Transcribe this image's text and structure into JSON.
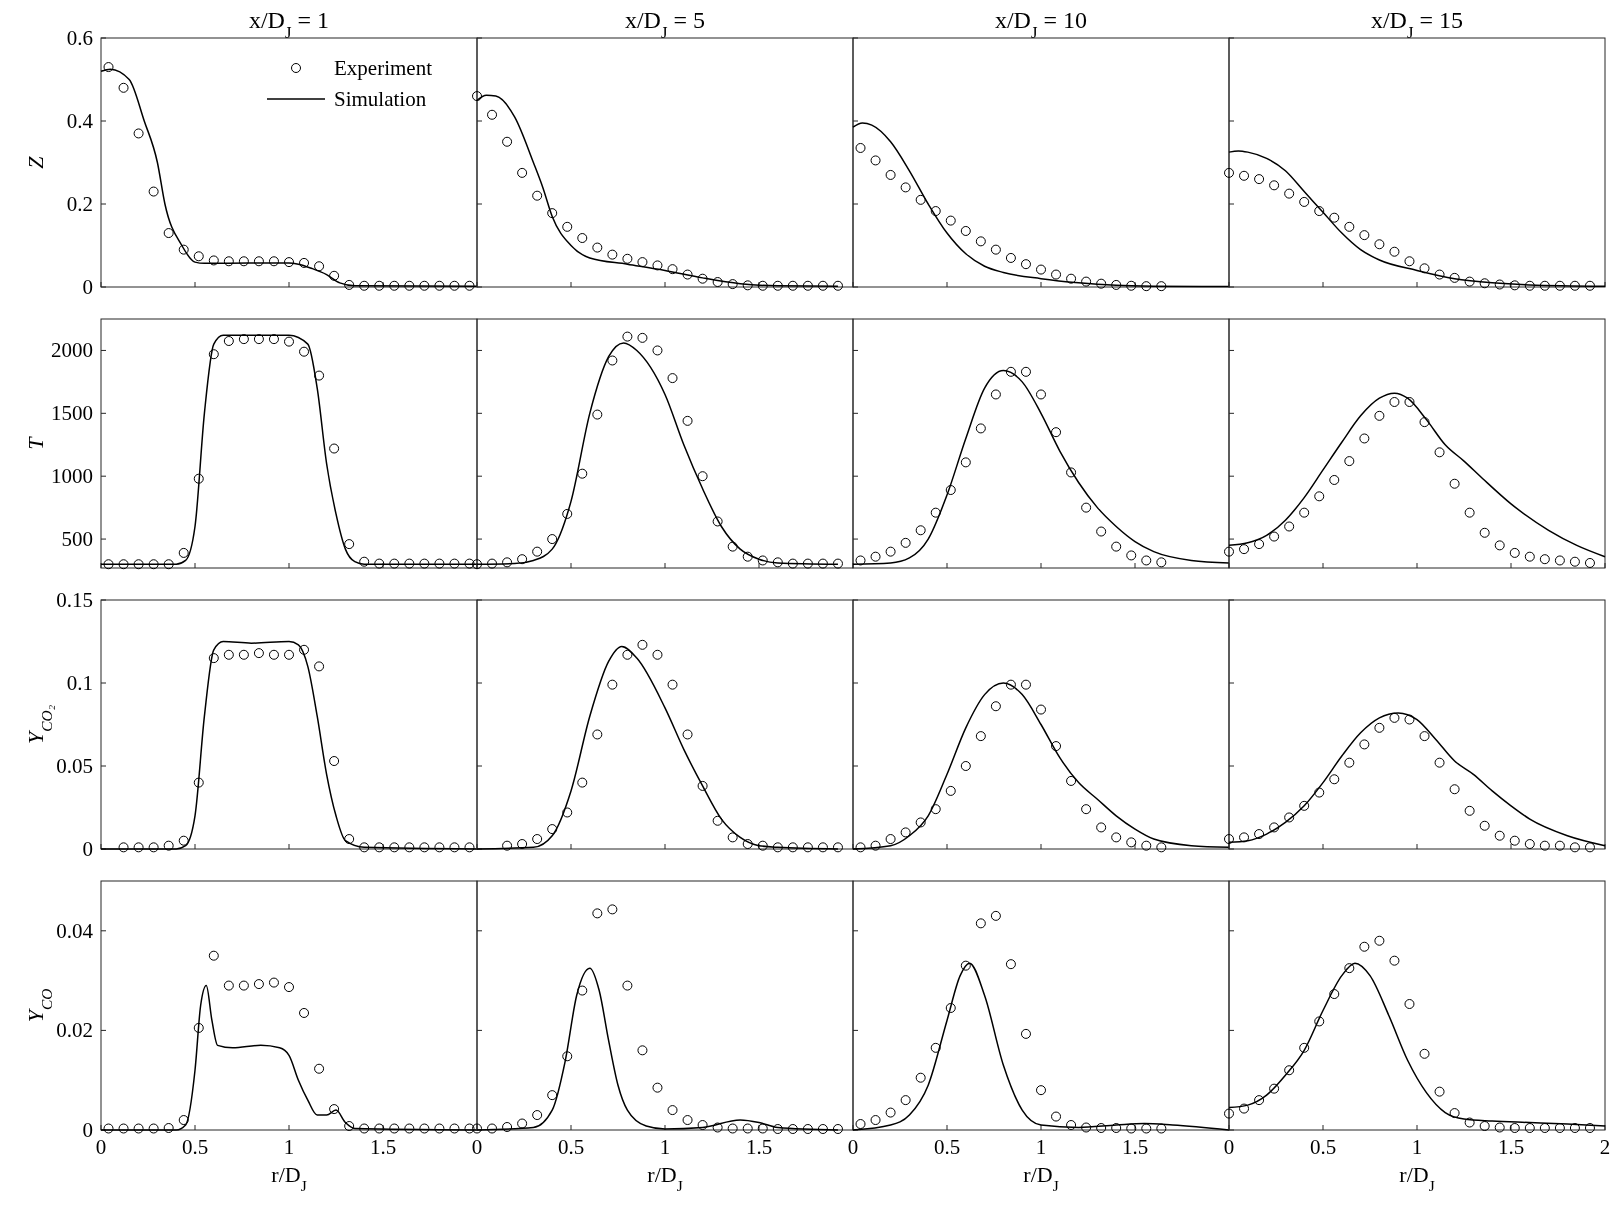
{
  "chart_data": [
    {
      "type": "scatter",
      "title": "x/D$_{J}$ = 1",
      "ylabel": "Z",
      "xlim": [
        0,
        2
      ],
      "xticks": [
        0,
        0.5,
        1,
        1.5
      ],
      "ylim": [
        0,
        0.6
      ],
      "yticks": [
        0,
        0.2,
        0.4,
        0.6
      ],
      "tick_labels": "y",
      "legend": "top right",
      "series": [
        {
          "name": "Experiment",
          "type": "scatter",
          "marker": "circle",
          "color": "#000000",
          "x": [
            0.04,
            0.12,
            0.2,
            0.28,
            0.36,
            0.44,
            0.52,
            0.6,
            0.68,
            0.76,
            0.84,
            0.92,
            1,
            1.08,
            1.16,
            1.24,
            1.32,
            1.4,
            1.48,
            1.56,
            1.64,
            1.72,
            1.8,
            1.88,
            1.96
          ],
          "values": [
            0.53,
            0.48,
            0.37,
            0.23,
            0.13,
            0.09,
            0.074,
            0.064,
            0.062,
            0.062,
            0.062,
            0.062,
            0.06,
            0.058,
            0.05,
            0.027,
            0.005,
            0.003,
            0.003,
            0.003,
            0.003,
            0.003,
            0.003,
            0.003,
            0.003
          ]
        },
        {
          "name": "Simulation",
          "type": "line",
          "color": "#000000",
          "x": [
            0,
            0.05,
            0.15,
            0.23,
            0.3,
            0.34,
            0.43,
            0.5,
            0.55,
            0.8,
            1,
            1.05,
            1.12,
            1.2,
            1.27,
            1.35,
            2
          ],
          "values": [
            0.52,
            0.525,
            0.5,
            0.4,
            0.3,
            0.2,
            0.1,
            0.06,
            0.057,
            0.058,
            0.058,
            0.055,
            0.045,
            0.03,
            0.01,
            0.003,
            0.002
          ]
        }
      ]
    },
    {
      "type": "scatter",
      "title": "x/D$_{J}$ = 5",
      "xlim": [
        0,
        2
      ],
      "xticks": [
        0,
        0.5,
        1,
        1.5
      ],
      "ylim": [
        0,
        0.6
      ],
      "yticks": [
        0,
        0.2,
        0.4,
        0.6
      ],
      "tick_labels": false,
      "series": [
        {
          "type": "scatter",
          "marker": "circle",
          "color": "#000000",
          "x": [
            0,
            0.08,
            0.16,
            0.24,
            0.32,
            0.4,
            0.48,
            0.56,
            0.64,
            0.72,
            0.8,
            0.88,
            0.96,
            1.04,
            1.12,
            1.2,
            1.28,
            1.36,
            1.44,
            1.52,
            1.6,
            1.68,
            1.76,
            1.84,
            1.92
          ],
          "values": [
            0.46,
            0.415,
            0.35,
            0.275,
            0.22,
            0.178,
            0.145,
            0.118,
            0.095,
            0.078,
            0.068,
            0.06,
            0.052,
            0.043,
            0.03,
            0.02,
            0.012,
            0.007,
            0.004,
            0.003,
            0.003,
            0.003,
            0.003,
            0.003,
            0.003
          ]
        },
        {
          "type": "line",
          "color": "#000000",
          "x": [
            0,
            0.05,
            0.1,
            0.2,
            0.3,
            0.35,
            0.4,
            0.5,
            0.6,
            0.8,
            1,
            1.2,
            1.4,
            1.6,
            1.92
          ],
          "values": [
            0.45,
            0.462,
            0.46,
            0.41,
            0.3,
            0.24,
            0.17,
            0.1,
            0.07,
            0.055,
            0.04,
            0.022,
            0.008,
            0.003,
            0.002
          ]
        }
      ]
    },
    {
      "type": "scatter",
      "title": "x/D$_{J}$ = 10",
      "xlim": [
        0,
        2
      ],
      "xticks": [
        0,
        0.5,
        1,
        1.5
      ],
      "ylim": [
        0,
        0.6
      ],
      "yticks": [
        0,
        0.2,
        0.4,
        0.6
      ],
      "tick_labels": false,
      "series": [
        {
          "type": "scatter",
          "marker": "circle",
          "color": "#000000",
          "x": [
            0.04,
            0.12,
            0.2,
            0.28,
            0.36,
            0.44,
            0.52,
            0.6,
            0.68,
            0.76,
            0.84,
            0.92,
            1,
            1.08,
            1.16,
            1.24,
            1.32,
            1.4,
            1.48,
            1.56,
            1.64
          ],
          "values": [
            0.335,
            0.305,
            0.27,
            0.24,
            0.21,
            0.183,
            0.16,
            0.135,
            0.11,
            0.09,
            0.07,
            0.055,
            0.042,
            0.03,
            0.02,
            0.013,
            0.008,
            0.005,
            0.003,
            0.002,
            0.002
          ]
        },
        {
          "type": "line",
          "color": "#000000",
          "x": [
            0,
            0.05,
            0.1,
            0.2,
            0.3,
            0.4,
            0.5,
            0.6,
            0.7,
            0.8,
            1,
            1.2,
            1.4,
            1.6,
            2
          ],
          "values": [
            0.385,
            0.395,
            0.39,
            0.35,
            0.28,
            0.2,
            0.13,
            0.08,
            0.05,
            0.035,
            0.02,
            0.01,
            0.004,
            0.002,
            0.001
          ]
        }
      ]
    },
    {
      "type": "scatter",
      "title": "x/D$_{J}$ = 15",
      "xlim": [
        0,
        2
      ],
      "xticks": [
        0,
        0.5,
        1,
        1.5,
        2
      ],
      "ylim": [
        0,
        0.6
      ],
      "yticks": [
        0,
        0.2,
        0.4,
        0.6
      ],
      "tick_labels": false,
      "series": [
        {
          "type": "scatter",
          "marker": "circle",
          "color": "#000000",
          "x": [
            0,
            0.08,
            0.16,
            0.24,
            0.32,
            0.4,
            0.48,
            0.56,
            0.64,
            0.72,
            0.8,
            0.88,
            0.96,
            1.04,
            1.12,
            1.2,
            1.28,
            1.36,
            1.44,
            1.52,
            1.6,
            1.68,
            1.76,
            1.84,
            1.92
          ],
          "values": [
            0.275,
            0.268,
            0.26,
            0.245,
            0.225,
            0.205,
            0.183,
            0.167,
            0.145,
            0.125,
            0.103,
            0.085,
            0.062,
            0.045,
            0.03,
            0.022,
            0.013,
            0.009,
            0.006,
            0.004,
            0.003,
            0.003,
            0.003,
            0.003,
            0.003
          ]
        },
        {
          "type": "line",
          "color": "#000000",
          "x": [
            0,
            0.05,
            0.1,
            0.2,
            0.3,
            0.4,
            0.5,
            0.6,
            0.7,
            0.8,
            1,
            1.2,
            1.4,
            1.6,
            2
          ],
          "values": [
            0.325,
            0.328,
            0.325,
            0.31,
            0.28,
            0.23,
            0.18,
            0.13,
            0.09,
            0.065,
            0.04,
            0.02,
            0.01,
            0.005,
            0.002
          ]
        }
      ]
    },
    {
      "type": "scatter",
      "ylabel": "T",
      "xlim": [
        0,
        2
      ],
      "xticks": [
        0,
        0.5,
        1,
        1.5
      ],
      "ylim": [
        270,
        2250
      ],
      "yticks": [
        500,
        1000,
        1500,
        2000
      ],
      "tick_labels": "y",
      "series": [
        {
          "type": "scatter",
          "marker": "circle",
          "color": "#000000",
          "x": [
            0.04,
            0.12,
            0.2,
            0.28,
            0.36,
            0.44,
            0.52,
            0.6,
            0.68,
            0.76,
            0.84,
            0.92,
            1,
            1.08,
            1.16,
            1.24,
            1.32,
            1.4,
            1.48,
            1.56,
            1.64,
            1.72,
            1.8,
            1.88,
            1.96
          ],
          "values": [
            300,
            300,
            300,
            300,
            300,
            390,
            980,
            1970,
            2075,
            2090,
            2090,
            2090,
            2070,
            1990,
            1800,
            1220,
            460,
            320,
            305,
            305,
            305,
            305,
            305,
            305,
            305
          ]
        },
        {
          "type": "line",
          "color": "#000000",
          "x": [
            0,
            0.4,
            0.45,
            0.5,
            0.55,
            0.6,
            0.65,
            1,
            1.1,
            1.15,
            1.2,
            1.25,
            1.3,
            1.35,
            1.4,
            2
          ],
          "values": [
            300,
            300,
            330,
            600,
            1500,
            2050,
            2120,
            2120,
            2050,
            1700,
            1100,
            700,
            420,
            320,
            300,
            300
          ]
        }
      ]
    },
    {
      "type": "scatter",
      "xlim": [
        0,
        2
      ],
      "xticks": [
        0,
        0.5,
        1,
        1.5
      ],
      "ylim": [
        270,
        2250
      ],
      "yticks": [
        500,
        1000,
        1500,
        2000
      ],
      "tick_labels": false,
      "series": [
        {
          "type": "scatter",
          "marker": "circle",
          "color": "#000000",
          "x": [
            0,
            0.08,
            0.16,
            0.24,
            0.32,
            0.4,
            0.48,
            0.56,
            0.64,
            0.72,
            0.8,
            0.88,
            0.96,
            1.04,
            1.12,
            1.2,
            1.28,
            1.36,
            1.44,
            1.52,
            1.6,
            1.68,
            1.76,
            1.84,
            1.92
          ],
          "values": [
            300,
            305,
            315,
            340,
            400,
            500,
            700,
            1020,
            1490,
            1920,
            2110,
            2100,
            2000,
            1780,
            1440,
            1000,
            640,
            440,
            360,
            330,
            315,
            305,
            305,
            305,
            305
          ]
        },
        {
          "type": "line",
          "color": "#000000",
          "x": [
            0,
            0.2,
            0.3,
            0.4,
            0.5,
            0.6,
            0.7,
            0.78,
            0.85,
            1,
            1.1,
            1.2,
            1.3,
            1.4,
            1.5,
            1.6,
            1.92
          ],
          "values": [
            300,
            305,
            330,
            420,
            800,
            1500,
            1950,
            2060,
            2000,
            1650,
            1250,
            900,
            600,
            420,
            340,
            310,
            300
          ]
        }
      ]
    },
    {
      "type": "scatter",
      "xlim": [
        0,
        2
      ],
      "xticks": [
        0,
        0.5,
        1,
        1.5
      ],
      "ylim": [
        270,
        2250
      ],
      "yticks": [
        500,
        1000,
        1500,
        2000
      ],
      "tick_labels": false,
      "series": [
        {
          "type": "scatter",
          "marker": "circle",
          "color": "#000000",
          "x": [
            0.04,
            0.12,
            0.2,
            0.28,
            0.36,
            0.44,
            0.52,
            0.6,
            0.68,
            0.76,
            0.84,
            0.92,
            1,
            1.08,
            1.16,
            1.24,
            1.32,
            1.4,
            1.48,
            1.56,
            1.64
          ],
          "values": [
            330,
            360,
            400,
            470,
            570,
            710,
            890,
            1110,
            1380,
            1650,
            1830,
            1830,
            1650,
            1350,
            1030,
            750,
            560,
            440,
            370,
            330,
            315
          ]
        },
        {
          "type": "line",
          "color": "#000000",
          "x": [
            0,
            0.2,
            0.3,
            0.4,
            0.5,
            0.6,
            0.7,
            0.8,
            0.9,
            1,
            1.1,
            1.2,
            1.3,
            1.4,
            1.5,
            1.6,
            1.8,
            2
          ],
          "values": [
            300,
            310,
            350,
            500,
            850,
            1300,
            1700,
            1840,
            1750,
            1500,
            1200,
            950,
            750,
            600,
            480,
            400,
            330,
            310
          ]
        }
      ]
    },
    {
      "type": "scatter",
      "xlim": [
        0,
        2
      ],
      "xticks": [
        0,
        0.5,
        1,
        1.5,
        2
      ],
      "ylim": [
        270,
        2250
      ],
      "yticks": [
        500,
        1000,
        1500,
        2000
      ],
      "tick_labels": false,
      "series": [
        {
          "type": "scatter",
          "marker": "circle",
          "color": "#000000",
          "x": [
            0,
            0.08,
            0.16,
            0.24,
            0.32,
            0.4,
            0.48,
            0.56,
            0.64,
            0.72,
            0.8,
            0.88,
            0.96,
            1.04,
            1.12,
            1.2,
            1.28,
            1.36,
            1.44,
            1.52,
            1.6,
            1.68,
            1.76,
            1.84,
            1.92
          ],
          "values": [
            400,
            420,
            460,
            520,
            600,
            710,
            840,
            970,
            1120,
            1300,
            1480,
            1590,
            1590,
            1430,
            1190,
            940,
            710,
            550,
            450,
            390,
            360,
            340,
            330,
            320,
            310
          ]
        },
        {
          "type": "line",
          "color": "#000000",
          "x": [
            0,
            0.1,
            0.2,
            0.3,
            0.4,
            0.5,
            0.6,
            0.7,
            0.8,
            0.88,
            0.95,
            1.05,
            1.15,
            1.25,
            1.35,
            1.5,
            1.7,
            1.85,
            2
          ],
          "values": [
            450,
            470,
            530,
            650,
            830,
            1050,
            1270,
            1480,
            1620,
            1660,
            1620,
            1450,
            1250,
            1120,
            980,
            780,
            570,
            450,
            360
          ]
        }
      ]
    },
    {
      "type": "scatter",
      "ylabel": "Y$_{CO₂}$",
      "xlim": [
        0,
        2
      ],
      "xticks": [
        0,
        0.5,
        1,
        1.5
      ],
      "ylim": [
        0,
        0.15
      ],
      "yticks": [
        0,
        0.05,
        0.1,
        0.15
      ],
      "tick_labels": "y",
      "series": [
        {
          "type": "scatter",
          "marker": "circle",
          "color": "#000000",
          "x": [
            0.12,
            0.2,
            0.28,
            0.36,
            0.44,
            0.52,
            0.6,
            0.68,
            0.76,
            0.84,
            0.92,
            1,
            1.08,
            1.16,
            1.24,
            1.32,
            1.4,
            1.48,
            1.56,
            1.64,
            1.72,
            1.8,
            1.88,
            1.96
          ],
          "values": [
            0.001,
            0.001,
            0.001,
            0.002,
            0.005,
            0.04,
            0.115,
            0.117,
            0.117,
            0.118,
            0.117,
            0.117,
            0.12,
            0.11,
            0.053,
            0.006,
            0.001,
            0.001,
            0.001,
            0.001,
            0.001,
            0.001,
            0.001,
            0.001
          ]
        },
        {
          "type": "line",
          "color": "#000000",
          "x": [
            0,
            0.4,
            0.45,
            0.5,
            0.55,
            0.6,
            0.65,
            0.8,
            1,
            1.05,
            1.1,
            1.15,
            1.2,
            1.25,
            1.3,
            1.4,
            2
          ],
          "values": [
            0,
            0,
            0.002,
            0.02,
            0.08,
            0.12,
            0.125,
            0.124,
            0.125,
            0.123,
            0.11,
            0.08,
            0.045,
            0.02,
            0.005,
            0.001,
            0
          ]
        }
      ]
    },
    {
      "type": "scatter",
      "xlim": [
        0,
        2
      ],
      "xticks": [
        0,
        0.5,
        1,
        1.5
      ],
      "ylim": [
        0,
        0.15
      ],
      "yticks": [
        0,
        0.05,
        0.1,
        0.15
      ],
      "tick_labels": false,
      "series": [
        {
          "type": "scatter",
          "marker": "circle",
          "color": "#000000",
          "x": [
            0.16,
            0.24,
            0.32,
            0.4,
            0.48,
            0.56,
            0.64,
            0.72,
            0.8,
            0.88,
            0.96,
            1.04,
            1.12,
            1.2,
            1.28,
            1.36,
            1.44,
            1.52,
            1.6,
            1.68,
            1.76,
            1.84,
            1.92
          ],
          "values": [
            0.002,
            0.003,
            0.006,
            0.012,
            0.022,
            0.04,
            0.069,
            0.099,
            0.117,
            0.123,
            0.117,
            0.099,
            0.069,
            0.038,
            0.017,
            0.007,
            0.003,
            0.002,
            0.001,
            0.001,
            0.001,
            0.001,
            0.001
          ]
        },
        {
          "type": "line",
          "color": "#000000",
          "x": [
            0,
            0.3,
            0.4,
            0.5,
            0.6,
            0.7,
            0.77,
            0.85,
            1,
            1.1,
            1.2,
            1.3,
            1.4,
            1.5,
            1.6,
            1.92
          ],
          "values": [
            0,
            0.001,
            0.008,
            0.035,
            0.08,
            0.113,
            0.122,
            0.115,
            0.085,
            0.06,
            0.038,
            0.018,
            0.007,
            0.002,
            0.001,
            0
          ]
        }
      ]
    },
    {
      "type": "scatter",
      "xlim": [
        0,
        2
      ],
      "xticks": [
        0,
        0.5,
        1,
        1.5
      ],
      "ylim": [
        0,
        0.15
      ],
      "yticks": [
        0,
        0.05,
        0.1,
        0.15
      ],
      "tick_labels": false,
      "series": [
        {
          "type": "scatter",
          "marker": "circle",
          "color": "#000000",
          "x": [
            0.04,
            0.12,
            0.2,
            0.28,
            0.36,
            0.44,
            0.52,
            0.6,
            0.68,
            0.76,
            0.84,
            0.92,
            1,
            1.08,
            1.16,
            1.24,
            1.32,
            1.4,
            1.48,
            1.56,
            1.64
          ],
          "values": [
            0.001,
            0.002,
            0.006,
            0.01,
            0.016,
            0.024,
            0.035,
            0.05,
            0.068,
            0.086,
            0.099,
            0.099,
            0.084,
            0.062,
            0.041,
            0.024,
            0.013,
            0.007,
            0.004,
            0.002,
            0.001
          ]
        },
        {
          "type": "line",
          "color": "#000000",
          "x": [
            0,
            0.2,
            0.3,
            0.4,
            0.5,
            0.6,
            0.7,
            0.8,
            0.9,
            1,
            1.1,
            1.2,
            1.3,
            1.4,
            1.5,
            1.6,
            1.8,
            2
          ],
          "values": [
            0,
            0.002,
            0.008,
            0.02,
            0.045,
            0.073,
            0.093,
            0.1,
            0.093,
            0.075,
            0.055,
            0.04,
            0.03,
            0.02,
            0.012,
            0.006,
            0.002,
            0.001
          ]
        }
      ]
    },
    {
      "type": "scatter",
      "xlim": [
        0,
        2
      ],
      "xticks": [
        0,
        0.5,
        1,
        1.5,
        2
      ],
      "ylim": [
        0,
        0.15
      ],
      "yticks": [
        0,
        0.05,
        0.1,
        0.15
      ],
      "tick_labels": false,
      "series": [
        {
          "type": "scatter",
          "marker": "circle",
          "color": "#000000",
          "x": [
            0,
            0.08,
            0.16,
            0.24,
            0.32,
            0.4,
            0.48,
            0.56,
            0.64,
            0.72,
            0.8,
            0.88,
            0.96,
            1.04,
            1.12,
            1.2,
            1.28,
            1.36,
            1.44,
            1.52,
            1.6,
            1.68,
            1.76,
            1.84,
            1.92
          ],
          "values": [
            0.006,
            0.007,
            0.009,
            0.013,
            0.019,
            0.026,
            0.034,
            0.042,
            0.052,
            0.063,
            0.073,
            0.079,
            0.078,
            0.068,
            0.052,
            0.036,
            0.023,
            0.014,
            0.008,
            0.005,
            0.003,
            0.002,
            0.002,
            0.001,
            0.001
          ]
        },
        {
          "type": "line",
          "color": "#000000",
          "x": [
            0,
            0.1,
            0.2,
            0.3,
            0.4,
            0.5,
            0.6,
            0.7,
            0.8,
            0.9,
            1,
            1.1,
            1.2,
            1.3,
            1.4,
            1.5,
            1.6,
            1.8,
            2
          ],
          "values": [
            0.004,
            0.005,
            0.009,
            0.016,
            0.026,
            0.04,
            0.056,
            0.07,
            0.079,
            0.082,
            0.078,
            0.066,
            0.053,
            0.045,
            0.035,
            0.026,
            0.018,
            0.008,
            0.002
          ]
        }
      ]
    },
    {
      "type": "scatter",
      "ylabel": "Y$_{CO}$",
      "xlabel": "r/D$_{J}$",
      "xlim": [
        0,
        2
      ],
      "xticks": [
        0,
        0.5,
        1,
        1.5
      ],
      "ylim": [
        0,
        0.05
      ],
      "yticks": [
        0,
        0.02,
        0.04
      ],
      "series": [
        {
          "type": "scatter",
          "marker": "circle",
          "color": "#000000",
          "x": [
            0.04,
            0.12,
            0.2,
            0.28,
            0.36,
            0.44,
            0.52,
            0.6,
            0.68,
            0.76,
            0.84,
            0.92,
            1,
            1.08,
            1.16,
            1.24,
            1.32,
            1.4,
            1.48,
            1.56,
            1.64,
            1.72,
            1.8,
            1.88,
            1.96
          ],
          "values": [
            0.0003,
            0.0003,
            0.0003,
            0.0003,
            0.0004,
            0.002,
            0.0205,
            0.035,
            0.029,
            0.029,
            0.0293,
            0.0296,
            0.0287,
            0.0235,
            0.0123,
            0.0042,
            0.0008,
            0.0003,
            0.0003,
            0.0003,
            0.0003,
            0.0003,
            0.0003,
            0.0003,
            0.0003
          ]
        },
        {
          "type": "line",
          "color": "#000000",
          "x": [
            0,
            0.4,
            0.45,
            0.5,
            0.53,
            0.56,
            0.59,
            0.62,
            0.7,
            0.85,
            0.95,
            1,
            1.05,
            1.1,
            1.15,
            1.2,
            1.25,
            1.3,
            1.35,
            2
          ],
          "values": [
            0,
            0,
            0.001,
            0.012,
            0.025,
            0.029,
            0.022,
            0.017,
            0.0165,
            0.017,
            0.0165,
            0.015,
            0.01,
            0.006,
            0.003,
            0.003,
            0.004,
            0.0015,
            0.0003,
            0
          ]
        }
      ]
    },
    {
      "type": "scatter",
      "xlabel": "r/D$_{J}$",
      "xlim": [
        0,
        2
      ],
      "xticks": [
        0,
        0.5,
        1,
        1.5
      ],
      "ylim": [
        0,
        0.05
      ],
      "yticks": [
        0,
        0.02,
        0.04
      ],
      "tick_labels": "x",
      "series": [
        {
          "type": "scatter",
          "marker": "circle",
          "color": "#000000",
          "x": [
            0,
            0.08,
            0.16,
            0.24,
            0.32,
            0.4,
            0.48,
            0.56,
            0.64,
            0.72,
            0.8,
            0.88,
            0.96,
            1.04,
            1.12,
            1.2,
            1.28,
            1.36,
            1.44,
            1.52,
            1.6,
            1.68,
            1.76,
            1.84,
            1.92
          ],
          "values": [
            0.0003,
            0.0003,
            0.0006,
            0.0013,
            0.003,
            0.007,
            0.0148,
            0.028,
            0.0435,
            0.0443,
            0.029,
            0.016,
            0.0085,
            0.004,
            0.002,
            0.001,
            0.0005,
            0.0003,
            0.0003,
            0.0003,
            0.0002,
            0.0002,
            0.0002,
            0.0002,
            0.0002
          ]
        },
        {
          "type": "line",
          "color": "#000000",
          "x": [
            0,
            0.3,
            0.4,
            0.47,
            0.53,
            0.6,
            0.65,
            0.7,
            0.75,
            0.8,
            0.9,
            1,
            1.2,
            1.4,
            1.5,
            1.6,
            1.92
          ],
          "values": [
            0,
            0.0005,
            0.004,
            0.014,
            0.027,
            0.0325,
            0.028,
            0.018,
            0.009,
            0.004,
            0.0008,
            0.0002,
            0.0005,
            0.002,
            0.0015,
            0.0005,
            0
          ]
        }
      ]
    },
    {
      "type": "scatter",
      "xlabel": "r/D$_{J}$",
      "xlim": [
        0,
        2
      ],
      "xticks": [
        0,
        0.5,
        1,
        1.5
      ],
      "ylim": [
        0,
        0.05
      ],
      "yticks": [
        0,
        0.02,
        0.04
      ],
      "tick_labels": "x",
      "series": [
        {
          "type": "scatter",
          "marker": "circle",
          "color": "#000000",
          "x": [
            0.04,
            0.12,
            0.2,
            0.28,
            0.36,
            0.44,
            0.52,
            0.6,
            0.68,
            0.76,
            0.84,
            0.92,
            1,
            1.08,
            1.16,
            1.24,
            1.32,
            1.4,
            1.48,
            1.56,
            1.64
          ],
          "values": [
            0.0012,
            0.002,
            0.0035,
            0.006,
            0.0105,
            0.0165,
            0.0245,
            0.033,
            0.0415,
            0.043,
            0.0333,
            0.0193,
            0.008,
            0.0027,
            0.001,
            0.0005,
            0.0004,
            0.0004,
            0.0003,
            0.0003,
            0.0003
          ]
        },
        {
          "type": "line",
          "color": "#000000",
          "x": [
            0,
            0.2,
            0.3,
            0.4,
            0.5,
            0.57,
            0.62,
            0.7,
            0.8,
            0.9,
            1,
            1.2,
            1.4,
            1.55,
            1.7,
            2
          ],
          "values": [
            0,
            0.001,
            0.003,
            0.009,
            0.022,
            0.031,
            0.0335,
            0.027,
            0.013,
            0.004,
            0.001,
            0.0005,
            0.001,
            0.0013,
            0.001,
            0
          ]
        }
      ]
    },
    {
      "type": "scatter",
      "xlabel": "r/D$_{J}$",
      "xlim": [
        0,
        2
      ],
      "xticks": [
        0,
        0.5,
        1,
        1.5,
        2
      ],
      "ylim": [
        0,
        0.05
      ],
      "yticks": [
        0,
        0.02,
        0.04
      ],
      "tick_labels": "x",
      "series": [
        {
          "type": "scatter",
          "marker": "circle",
          "color": "#000000",
          "x": [
            0,
            0.08,
            0.16,
            0.24,
            0.32,
            0.4,
            0.48,
            0.56,
            0.64,
            0.72,
            0.8,
            0.88,
            0.96,
            1.04,
            1.12,
            1.2,
            1.28,
            1.36,
            1.44,
            1.52,
            1.6,
            1.68,
            1.76,
            1.84,
            1.92
          ],
          "values": [
            0.0033,
            0.0043,
            0.006,
            0.0083,
            0.012,
            0.0165,
            0.0218,
            0.0273,
            0.0325,
            0.0368,
            0.038,
            0.034,
            0.0253,
            0.0153,
            0.0077,
            0.0034,
            0.0015,
            0.0008,
            0.0005,
            0.0004,
            0.0004,
            0.0004,
            0.0004,
            0.0004,
            0.0004
          ]
        },
        {
          "type": "line",
          "color": "#000000",
          "x": [
            0,
            0.1,
            0.2,
            0.3,
            0.4,
            0.5,
            0.6,
            0.67,
            0.75,
            0.85,
            0.95,
            1.05,
            1.15,
            1.25,
            1.4,
            1.6,
            1.8,
            2
          ],
          "values": [
            0.0045,
            0.005,
            0.007,
            0.011,
            0.016,
            0.024,
            0.031,
            0.0335,
            0.031,
            0.023,
            0.014,
            0.0075,
            0.0035,
            0.0022,
            0.0018,
            0.0015,
            0.0012,
            0.0008
          ]
        }
      ]
    }
  ]
}
